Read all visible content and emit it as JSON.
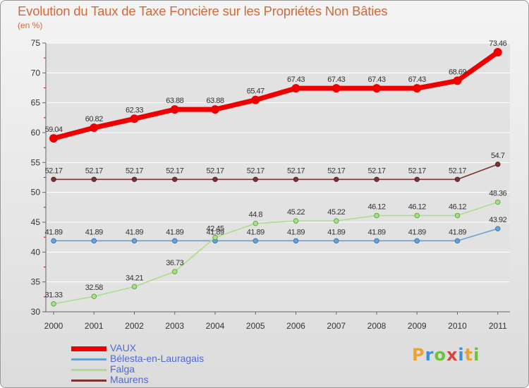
{
  "header": {
    "title": "Evolution du Taux de Taxe Foncière sur les Propriétés Non Bâties",
    "subtitle": "(en %)"
  },
  "logo": {
    "letters": [
      "P",
      "r",
      "o",
      "x",
      "i",
      "t",
      "i"
    ],
    "colors": [
      "#e8a23a",
      "#3d8fd8",
      "#6ebf3a",
      "#d9453a",
      "#3d8fd8",
      "#e8a23a",
      "#6ebf3a"
    ]
  },
  "colors": {
    "vaux": "#ee0000",
    "belesta": "#6a9fcf",
    "falga": "#a8df88",
    "maurens": "#7a3434",
    "axis_text": "#333333",
    "grid": "#ffffff"
  },
  "chart_data": {
    "type": "line",
    "title": "Evolution du Taux de Taxe Foncière sur les Propriétés Non Bâties",
    "ylabel": "(en %)",
    "xlabel": "",
    "ylim": [
      30,
      75
    ],
    "yticks": [
      30,
      35,
      40,
      45,
      50,
      55,
      60,
      65,
      70,
      75
    ],
    "categories": [
      "2000",
      "2001",
      "2002",
      "2003",
      "2004",
      "2005",
      "2006",
      "2007",
      "2008",
      "2009",
      "2010",
      "2011"
    ],
    "series": [
      {
        "name": "VAUX",
        "key": "vaux",
        "values": [
          59.04,
          60.82,
          62.33,
          63.88,
          63.88,
          65.47,
          67.43,
          67.43,
          67.43,
          67.43,
          68.69,
          73.46
        ],
        "labels": [
          "59.04",
          "60.82",
          "62.33",
          "63.88",
          "63.88",
          "65.47",
          "67.43",
          "67.43",
          "67.43",
          "67.43",
          "68.69",
          "73.46"
        ]
      },
      {
        "name": "Bélesta-en-Lauragais",
        "key": "belesta",
        "values": [
          41.89,
          41.89,
          41.89,
          41.89,
          41.89,
          41.89,
          41.89,
          41.89,
          41.89,
          41.89,
          41.89,
          43.92
        ],
        "labels": [
          "41.89",
          "41.89",
          "41.89",
          "41.89",
          "41.89",
          "41.89",
          "41.89",
          "41.89",
          "41.89",
          "41.89",
          "41.89",
          "43.92"
        ]
      },
      {
        "name": "Falga",
        "key": "falga",
        "values": [
          31.33,
          32.58,
          34.21,
          36.73,
          42.45,
          44.8,
          45.22,
          45.22,
          46.12,
          46.12,
          46.12,
          48.36
        ],
        "labels": [
          "31.33",
          "32.58",
          "34.21",
          "36.73",
          "42.45",
          "44.8",
          "45.22",
          "45.22",
          "46.12",
          "46.12",
          "46.12",
          "48.36"
        ]
      },
      {
        "name": "Maurens",
        "key": "maurens",
        "values": [
          52.17,
          52.17,
          52.17,
          52.17,
          52.17,
          52.17,
          52.17,
          52.17,
          52.17,
          52.17,
          52.17,
          54.7
        ],
        "labels": [
          "52.17",
          "52.17",
          "52.17",
          "52.17",
          "52.17",
          "52.17",
          "52.17",
          "52.17",
          "52.17",
          "52.17",
          "52.17",
          "54.7"
        ]
      }
    ],
    "legend_position": "bottom-left"
  }
}
